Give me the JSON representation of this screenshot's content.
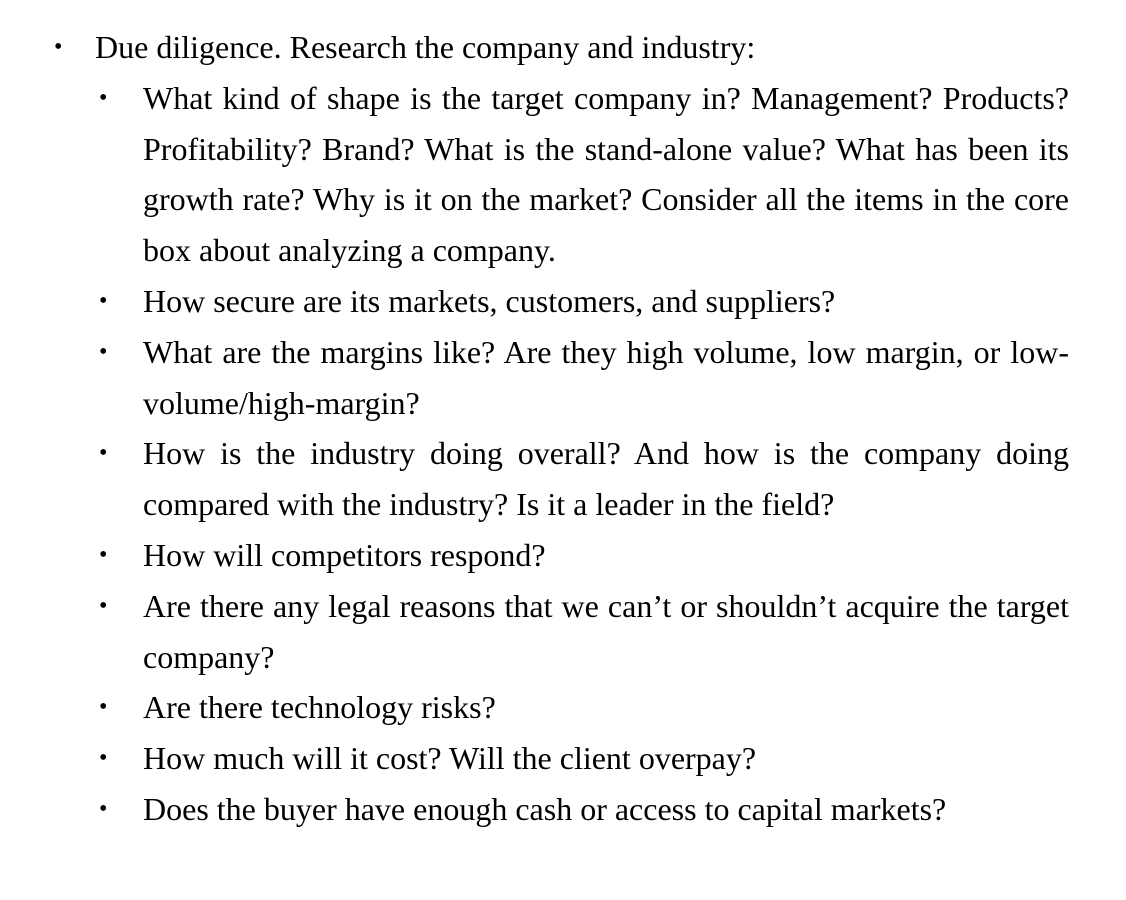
{
  "heading": {
    "bullet": "•",
    "text": "Due diligence. Research the company and industry:"
  },
  "items": [
    {
      "bullet": "•",
      "text": "What kind of shape is the target company in? Management? Products? Profitability? Brand? What is the stand-alone value? What has been its growth rate? Why is it on the market? Consider all the items in the core box about analyzing a company."
    },
    {
      "bullet": "•",
      "text": "How secure are its markets, customers, and suppliers?"
    },
    {
      "bullet": "•",
      "text": "What are the margins like? Are they high volume, low margin, or low-volume/high-margin?"
    },
    {
      "bullet": "•",
      "text": "How is the industry doing overall? And how is the company doing compared with the industry? Is it a leader in the field?"
    },
    {
      "bullet": "•",
      "text": "How will competitors respond?"
    },
    {
      "bullet": "•",
      "text": "Are there any legal reasons that we can’t or shouldn’t acquire the target company?"
    },
    {
      "bullet": "•",
      "text": "Are there technology risks?"
    },
    {
      "bullet": "•",
      "text": "How much will it cost? Will the client overpay?"
    },
    {
      "bullet": "•",
      "text": "Does the buyer have enough cash or access to capital markets?"
    }
  ]
}
